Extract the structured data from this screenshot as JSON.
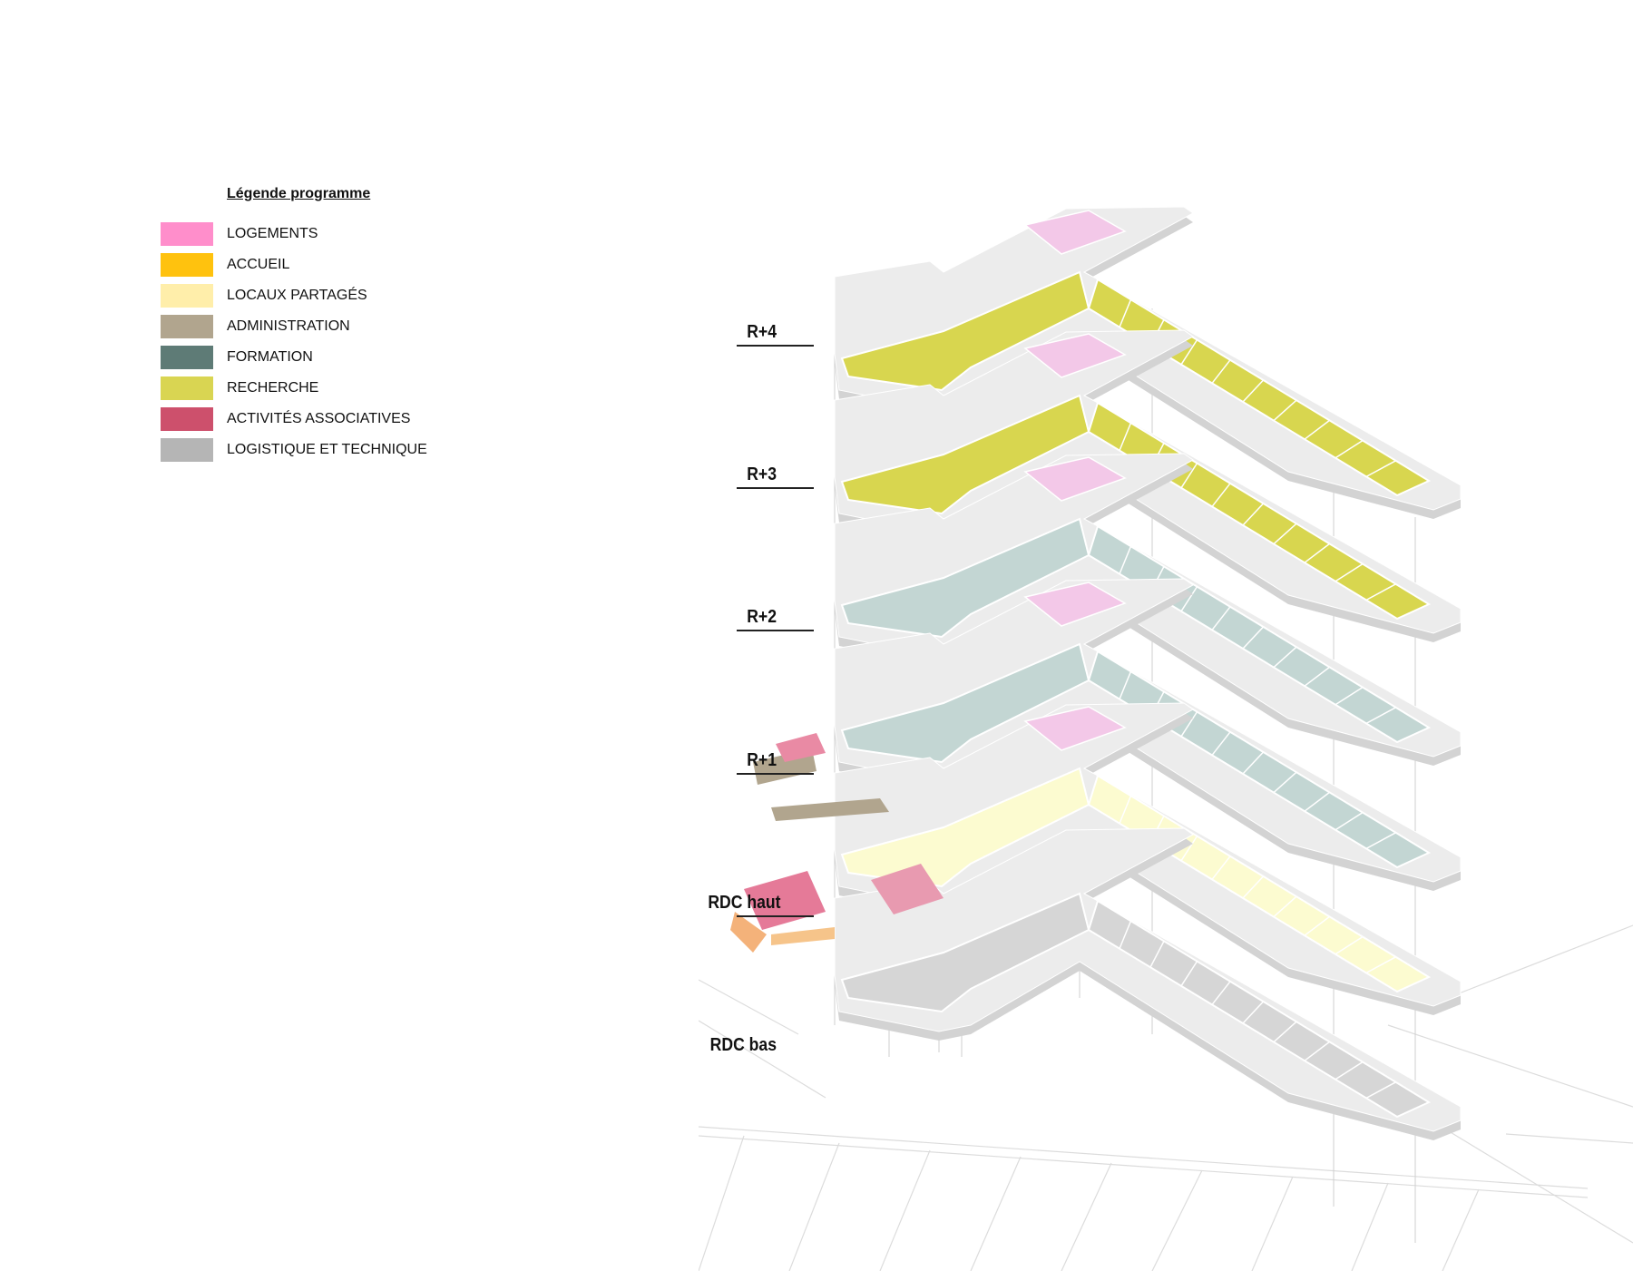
{
  "legend": {
    "title": "Légende programme",
    "items": [
      {
        "label": "LOGEMENTS",
        "color": "#ff8ecb"
      },
      {
        "label": "ACCUEIL",
        "color": "#ffc20e"
      },
      {
        "label": "LOCAUX PARTAGÉS",
        "color": "#ffeeaa"
      },
      {
        "label": "ADMINISTRATION",
        "color": "#b1a58e"
      },
      {
        "label": "FORMATION",
        "color": "#5e7b76"
      },
      {
        "label": "RECHERCHE",
        "color": "#d9d552"
      },
      {
        "label": "ACTIVITÉS ASSOCIATIVES",
        "color": "#cd506c"
      },
      {
        "label": "LOGISTIQUE ET TECHNIQUE",
        "color": "#b5b5b5"
      }
    ]
  },
  "floors": [
    {
      "label": "R+4",
      "program": "recherche",
      "color": "#d8d64f"
    },
    {
      "label": "R+3",
      "program": "recherche",
      "color": "#d8d64f"
    },
    {
      "label": "R+2",
      "program": "formation",
      "color": "#c3d6d3"
    },
    {
      "label": "R+1",
      "program": "formation",
      "color": "#c3d6d3"
    },
    {
      "label": "RDC haut",
      "program": "locaux partagés",
      "color": "#fcfbd0"
    },
    {
      "label": "RDC bas",
      "program": "logistique et technique",
      "color": "#d6d6d6"
    }
  ],
  "colors": {
    "slab": "#ececec",
    "slab_edge": "#d3d3d3",
    "housing_tint": "#f3c8e8",
    "stroke": "#ffffff",
    "column": "#cfcfcf"
  }
}
